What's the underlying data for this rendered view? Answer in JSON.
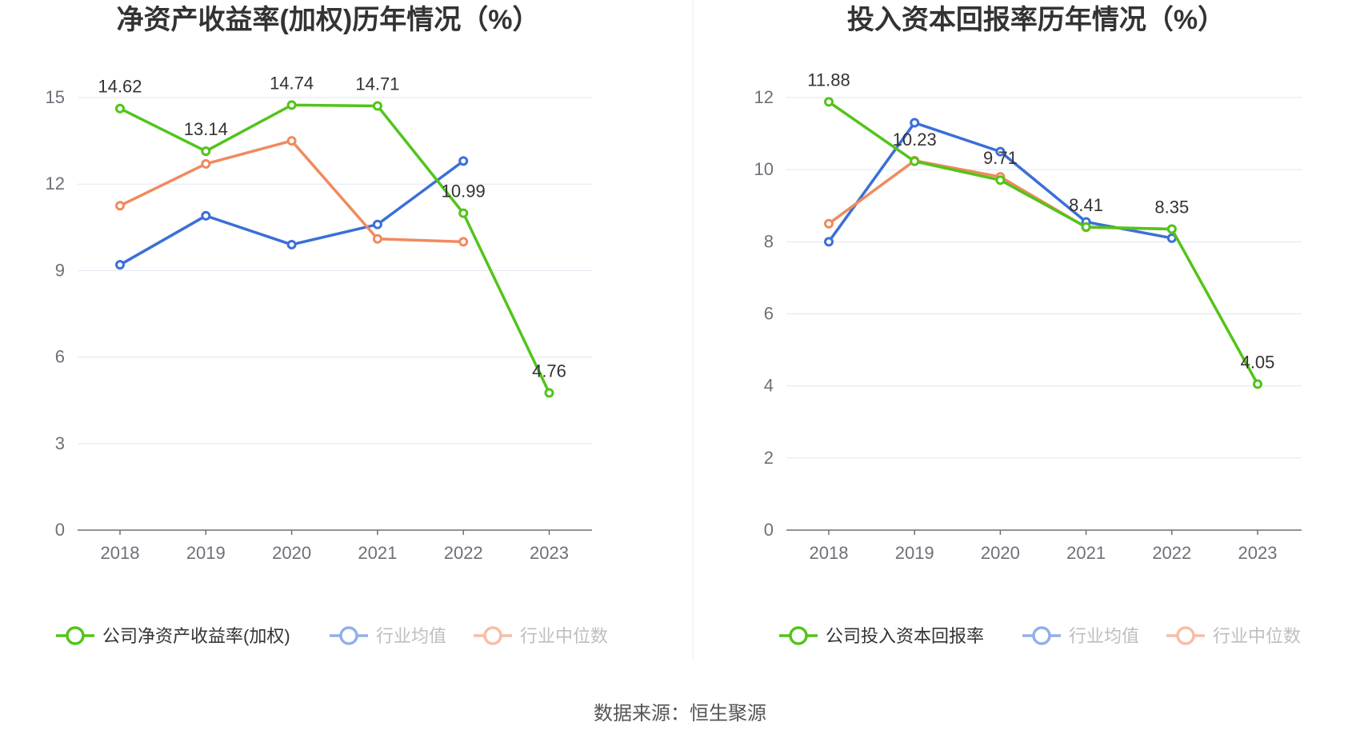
{
  "chart_data": [
    {
      "type": "line",
      "title": "净资产收益率(加权)历年情况（%）",
      "categories": [
        "2018",
        "2019",
        "2020",
        "2021",
        "2022",
        "2023"
      ],
      "ylim": [
        0,
        15
      ],
      "yticks": [
        0,
        3,
        6,
        9,
        12,
        15
      ],
      "grid": true,
      "legend_position": "bottom",
      "series": [
        {
          "name": "公司净资产收益率(加权)",
          "color": "#52c41a",
          "values": [
            14.62,
            13.14,
            14.74,
            14.71,
            10.99,
            4.76
          ],
          "labels": [
            "14.62",
            "13.14",
            "14.74",
            "14.71",
            "10.99",
            "4.76"
          ]
        },
        {
          "name": "行业均值",
          "color": "#3b6fd8",
          "values": [
            9.2,
            10.9,
            9.9,
            10.6,
            12.8,
            null
          ]
        },
        {
          "name": "行业中位数",
          "color": "#f08a5d",
          "values": [
            11.25,
            12.7,
            13.5,
            10.1,
            10.0,
            null
          ]
        }
      ]
    },
    {
      "type": "line",
      "title": "投入资本回报率历年情况（%）",
      "categories": [
        "2018",
        "2019",
        "2020",
        "2021",
        "2022",
        "2023"
      ],
      "ylim": [
        0,
        12
      ],
      "yticks": [
        0,
        2,
        4,
        6,
        8,
        10,
        12
      ],
      "grid": true,
      "legend_position": "bottom",
      "series": [
        {
          "name": "公司投入资本回报率",
          "color": "#52c41a",
          "values": [
            11.88,
            10.23,
            9.71,
            8.41,
            8.35,
            4.05
          ],
          "labels": [
            "11.88",
            "10.23",
            "9.71",
            "8.41",
            "8.35",
            "4.05"
          ]
        },
        {
          "name": "行业均值",
          "color": "#3b6fd8",
          "values": [
            8.0,
            11.3,
            10.5,
            8.55,
            8.1,
            null
          ]
        },
        {
          "name": "行业中位数",
          "color": "#f08a5d",
          "values": [
            8.5,
            10.25,
            9.8,
            8.4,
            8.35,
            null
          ]
        }
      ]
    }
  ],
  "footer": {
    "source": "数据来源：恒生聚源"
  }
}
